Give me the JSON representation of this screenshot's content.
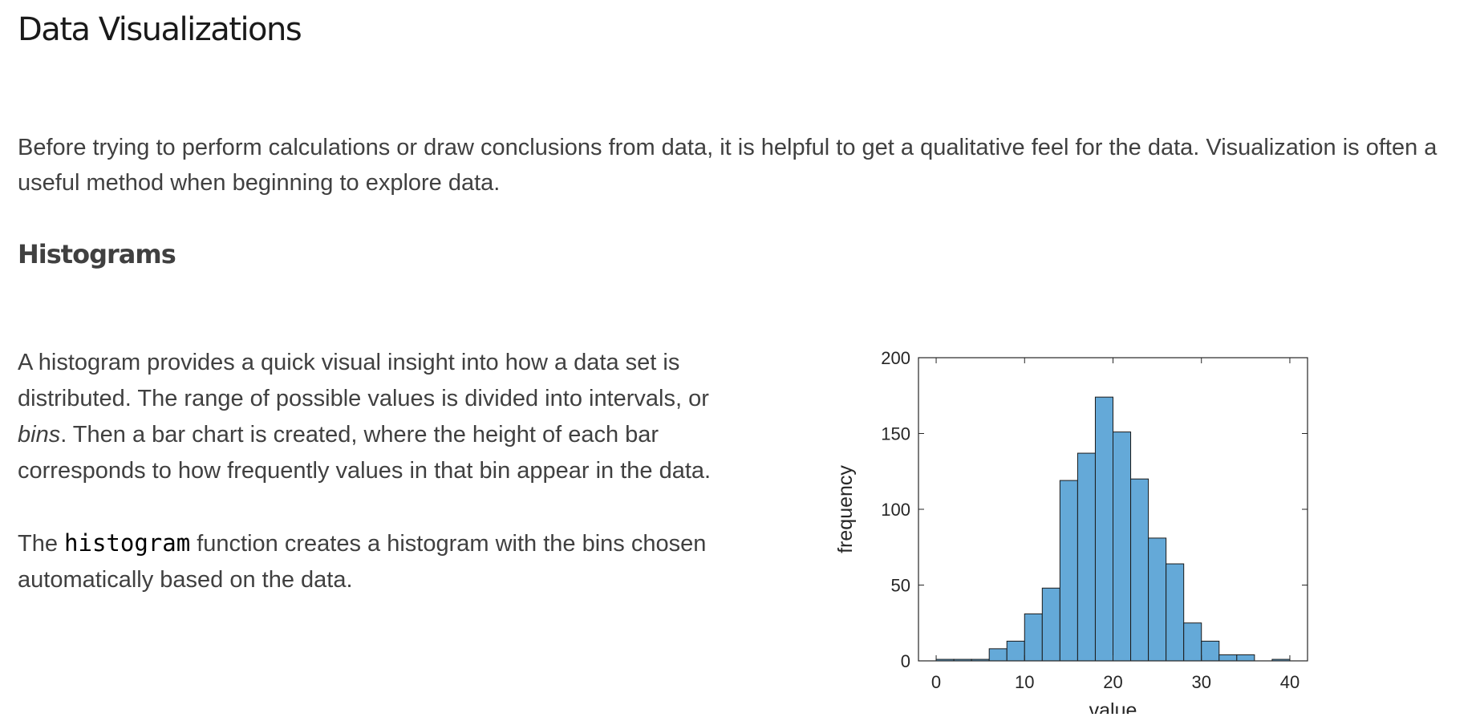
{
  "page": {
    "title": "Data Visualizations",
    "intro": "Before trying to perform calculations or draw conclusions from data, it is helpful to get a qualitative feel for the data. Visualization is often a useful method when beginning to explore data."
  },
  "section": {
    "title": "Histograms",
    "para1_before": "A histogram provides a quick visual insight into how a data set is distributed. The range of possible values is divided into intervals, or ",
    "para1_em": "bins",
    "para1_after": ". Then a bar chart is created, where the height of each bar corresponds to how frequently values in that bin appear in the data.",
    "para2_before": "The ",
    "para2_code": "histogram",
    "para2_after": " function creates a histogram with the bins chosen automatically based on the data."
  },
  "chart_data": {
    "type": "bar",
    "bin_edges": [
      0,
      2,
      4,
      6,
      8,
      10,
      12,
      14,
      16,
      18,
      20,
      22,
      24,
      26,
      28,
      30,
      32,
      34,
      36,
      38,
      40
    ],
    "values": [
      1,
      1,
      1,
      8,
      13,
      31,
      48,
      119,
      137,
      174,
      151,
      120,
      81,
      64,
      25,
      13,
      4,
      4,
      0,
      1
    ],
    "xlabel": "value",
    "ylabel": "frequency",
    "xlim": [
      -2,
      42
    ],
    "ylim": [
      0,
      200
    ],
    "xticks": [
      0,
      10,
      20,
      30,
      40
    ],
    "yticks": [
      0,
      50,
      100,
      150,
      200
    ],
    "grid": false,
    "colors": {
      "bar_fill": "#64a9d8",
      "bar_edge": "#1a1a1a",
      "axis": "#262626"
    }
  }
}
